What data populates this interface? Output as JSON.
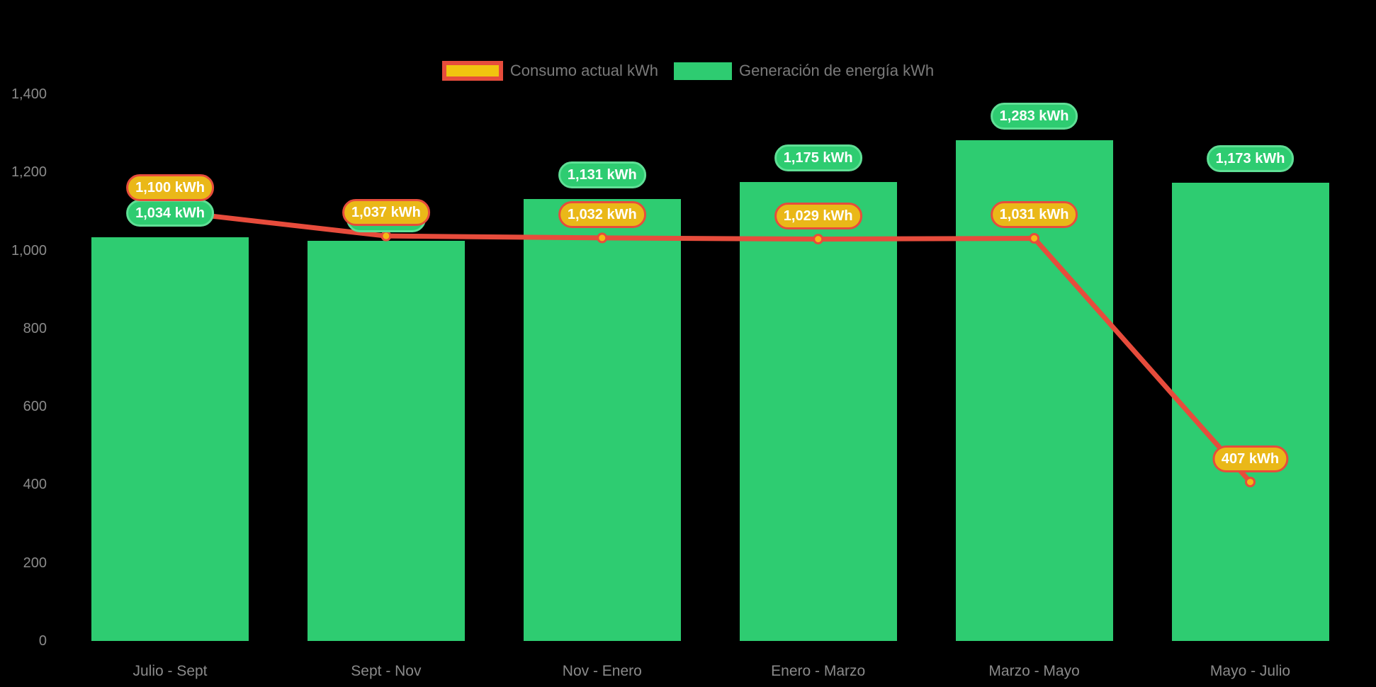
{
  "legend": {
    "items": [
      {
        "label": "Consumo actual kWh",
        "swatch_fill": "#f1c40f",
        "swatch_border": "#e74c3c",
        "series_type": "line"
      },
      {
        "label": "Generación de energía kWh",
        "swatch_fill": "#2ecc71",
        "swatch_border": "#2ecc71",
        "series_type": "bar"
      }
    ]
  },
  "chart_data": {
    "type": "bar",
    "subtype": "bar-with-line-overlay",
    "categories": [
      "Julio - Sept",
      "Sept - Nov",
      "Nov - Enero",
      "Enero - Marzo",
      "Marzo - Mayo",
      "Mayo - Julio"
    ],
    "series": [
      {
        "name": "Consumo actual kWh",
        "type": "line",
        "color": "#e74c3c",
        "marker_fill": "#f5b914",
        "values": [
          1100,
          1037,
          1032,
          1029,
          1031,
          407
        ],
        "point_labels": [
          "1,100 kWh",
          "1,037 kWh",
          "1,032 kWh",
          "1,029 kWh",
          "1,031 kWh",
          "407 kWh"
        ]
      },
      {
        "name": "Generación de energía kWh",
        "type": "bar",
        "color": "#2ecc71",
        "values": [
          1034,
          1025,
          1131,
          1175,
          1283,
          1173
        ],
        "point_labels": [
          "1,034 kWh",
          null,
          "1,131 kWh",
          "1,175 kWh",
          "1,283 kWh",
          "1,173 kWh"
        ]
      }
    ],
    "ylim": [
      0,
      1400
    ],
    "yticks": [
      0,
      200,
      400,
      600,
      800,
      1000,
      1200,
      1400
    ],
    "ytick_labels": [
      "0",
      "200",
      "400",
      "600",
      "800",
      "1,000",
      "1,200",
      "1,400"
    ],
    "grid": false,
    "legend_position": "top-center",
    "background": "#000000"
  },
  "colors": {
    "background": "#000000",
    "bar_green": "#2ecc71",
    "green_pill_border": "#5fdf95",
    "line_red": "#e74c3c",
    "pill_orange": "#eab818",
    "legend_yellow": "#f1c40f",
    "marker_fill": "#f5b914",
    "axis_text": "#8a8a8a",
    "legend_text": "#7a7a7a",
    "pill_text": "#ffffff"
  }
}
